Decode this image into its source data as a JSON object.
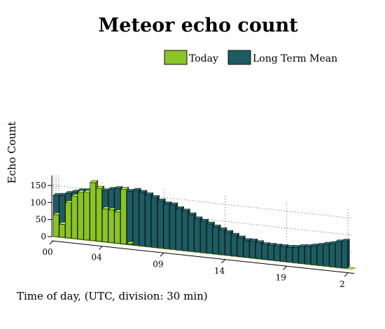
{
  "chart_data": {
    "type": "bar",
    "title": "Meteor echo count",
    "xlabel": "Time of day, (UTC, division: 30 min)",
    "ylabel": "Echo Count",
    "ylim": [
      0,
      175
    ],
    "y_ticks": [
      "0",
      "50",
      "100",
      "150"
    ],
    "x_ticks": [
      {
        "label": "00",
        "slot": 0
      },
      {
        "label": "04",
        "slot": 8
      },
      {
        "label": "09",
        "slot": 18
      },
      {
        "label": "14",
        "slot": 28
      },
      {
        "label": "19",
        "slot": 38
      },
      {
        "label": "2",
        "slot": 48
      }
    ],
    "legend_position": "top-right",
    "grid": true,
    "view": "3d",
    "series": [
      {
        "name": "Today",
        "color": "#8ac425",
        "values": [
          64,
          38,
          103,
          124,
          137,
          140,
          170,
          155,
          97,
          96,
          92,
          160,
          3
        ]
      },
      {
        "name": "Long Term Mean",
        "color": "#1d5c62",
        "values": [
          120,
          123,
          130,
          136,
          142,
          144,
          152,
          154,
          150,
          156,
          160,
          158,
          156,
          161,
          157,
          152,
          146,
          138,
          131,
          130,
          121,
          116,
          107,
          97,
          92,
          86,
          79,
          73,
          67,
          61,
          55,
          49,
          50,
          47,
          43,
          43,
          43,
          43,
          43,
          45,
          49,
          51,
          55,
          59,
          64,
          68,
          75,
          79,
          0
        ]
      }
    ]
  }
}
